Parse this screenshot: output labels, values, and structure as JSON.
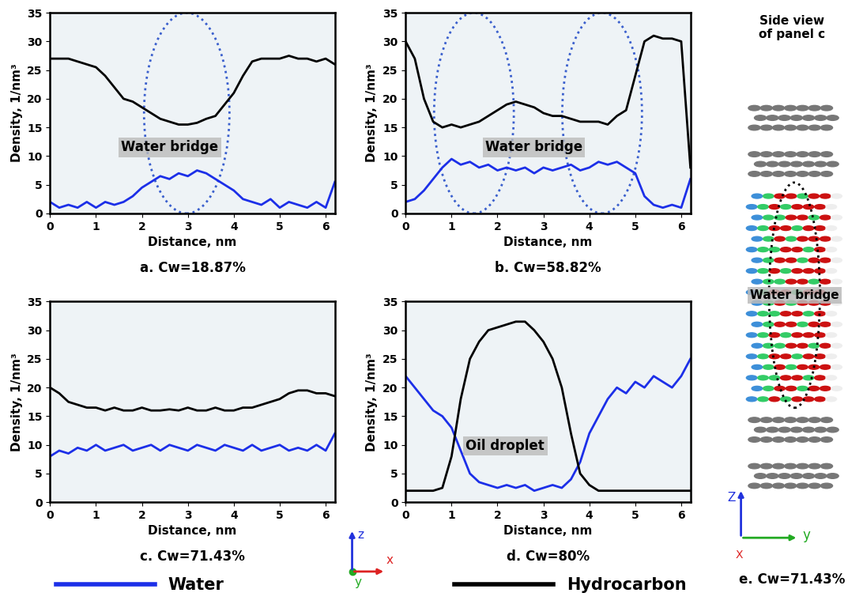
{
  "chart_data": [
    {
      "type": "line",
      "caption": "a. Cw=18.87%",
      "annotation": "Water bridge",
      "x_label": "Distance, nm",
      "y_label": "Density, 1/nm³",
      "xlim": [
        0,
        6.2
      ],
      "xticks": [
        0,
        1,
        2,
        3,
        4,
        5,
        6
      ],
      "ylim": [
        0,
        35
      ],
      "yticks": [
        0,
        5,
        10,
        15,
        20,
        25,
        30,
        35
      ],
      "x": [
        0,
        0.2,
        0.4,
        0.6,
        0.8,
        1.0,
        1.2,
        1.4,
        1.6,
        1.8,
        2.0,
        2.2,
        2.4,
        2.6,
        2.8,
        3.0,
        3.2,
        3.4,
        3.6,
        3.8,
        4.0,
        4.2,
        4.4,
        4.6,
        4.8,
        5.0,
        5.2,
        5.4,
        5.6,
        5.8,
        6.0,
        6.2
      ],
      "series": [
        {
          "name": "Water",
          "color": "#1c2fe8",
          "values": [
            2,
            1,
            1.5,
            1,
            2,
            1,
            2,
            1.5,
            2,
            3,
            4.5,
            5.5,
            6.5,
            6,
            7,
            6.5,
            7.5,
            7,
            6,
            5,
            4,
            2.5,
            2,
            1.5,
            2.5,
            1,
            2,
            1.5,
            1,
            2,
            1,
            5.5
          ]
        },
        {
          "name": "Hydrocarbon",
          "color": "#000000",
          "values": [
            27,
            27,
            27,
            26.5,
            26,
            25.5,
            24,
            22,
            20,
            19.5,
            18.5,
            17.5,
            16.5,
            16,
            15.5,
            15.5,
            15.8,
            16.5,
            17,
            19,
            21,
            24,
            26.5,
            27,
            27,
            27,
            27.5,
            27,
            27,
            26.5,
            27,
            26
          ]
        }
      ]
    },
    {
      "type": "line",
      "caption": "b. Cw=58.82%",
      "annotation": "Water bridge",
      "x_label": "Distance, nm",
      "y_label": "Density, 1/nm³",
      "xlim": [
        0,
        6.2
      ],
      "xticks": [
        0,
        1,
        2,
        3,
        4,
        5,
        6
      ],
      "ylim": [
        0,
        35
      ],
      "yticks": [
        0,
        5,
        10,
        15,
        20,
        25,
        30,
        35
      ],
      "x": [
        0,
        0.2,
        0.4,
        0.6,
        0.8,
        1.0,
        1.2,
        1.4,
        1.6,
        1.8,
        2.0,
        2.2,
        2.4,
        2.6,
        2.8,
        3.0,
        3.2,
        3.4,
        3.6,
        3.8,
        4.0,
        4.2,
        4.4,
        4.6,
        4.8,
        5.0,
        5.2,
        5.4,
        5.6,
        5.8,
        6.0,
        6.2
      ],
      "series": [
        {
          "name": "Water",
          "color": "#1c2fe8",
          "values": [
            2,
            2.5,
            4,
            6,
            8,
            9.5,
            8.5,
            9,
            8,
            8.5,
            7.5,
            8,
            7.5,
            8,
            7,
            8,
            7.5,
            8,
            8.5,
            7.5,
            8,
            9,
            8.5,
            9,
            8,
            7,
            3,
            1.5,
            1,
            1.5,
            1,
            6
          ]
        },
        {
          "name": "Hydrocarbon",
          "color": "#000000",
          "values": [
            30,
            27,
            20,
            16,
            15,
            15.5,
            15,
            15.5,
            16,
            17,
            18,
            19,
            19.5,
            19,
            18.5,
            17.5,
            17,
            17,
            16.5,
            16,
            16,
            16,
            15.5,
            17,
            18,
            24,
            30,
            31,
            30.5,
            30.5,
            30,
            8
          ]
        }
      ]
    },
    {
      "type": "line",
      "caption": "c. Cw=71.43%",
      "x_label": "Distance, nm",
      "y_label": "Density, 1/nm³",
      "xlim": [
        0,
        6.2
      ],
      "xticks": [
        0,
        1,
        2,
        3,
        4,
        5,
        6
      ],
      "ylim": [
        0,
        35
      ],
      "yticks": [
        0,
        5,
        10,
        15,
        20,
        25,
        30,
        35
      ],
      "x": [
        0,
        0.2,
        0.4,
        0.6,
        0.8,
        1.0,
        1.2,
        1.4,
        1.6,
        1.8,
        2.0,
        2.2,
        2.4,
        2.6,
        2.8,
        3.0,
        3.2,
        3.4,
        3.6,
        3.8,
        4.0,
        4.2,
        4.4,
        4.6,
        4.8,
        5.0,
        5.2,
        5.4,
        5.6,
        5.8,
        6.0,
        6.2
      ],
      "series": [
        {
          "name": "Water",
          "color": "#1c2fe8",
          "values": [
            8,
            9,
            8.5,
            9.5,
            9,
            10,
            9,
            9.5,
            10,
            9,
            9.5,
            10,
            9,
            10,
            9.5,
            9,
            10,
            9.5,
            9,
            10,
            9.5,
            9,
            10,
            9,
            9.5,
            10,
            9,
            9.5,
            9,
            10,
            9,
            12
          ]
        },
        {
          "name": "Hydrocarbon",
          "color": "#000000",
          "values": [
            20,
            19,
            17.5,
            17,
            16.5,
            16.5,
            16,
            16.5,
            16,
            16,
            16.5,
            16,
            16,
            16.2,
            16,
            16.5,
            16,
            16,
            16.5,
            16,
            16,
            16.5,
            16.5,
            17,
            17.5,
            18,
            19,
            19.5,
            19.5,
            19,
            19,
            18.5
          ]
        }
      ]
    },
    {
      "type": "line",
      "caption": "d. Cw=80%",
      "annotation": "Oil droplet",
      "x_label": "Distance, nm",
      "y_label": "Density, 1/nm³",
      "xlim": [
        0,
        6.2
      ],
      "xticks": [
        0,
        1,
        2,
        3,
        4,
        5,
        6
      ],
      "ylim": [
        0,
        35
      ],
      "yticks": [
        0,
        5,
        10,
        15,
        20,
        25,
        30,
        35
      ],
      "x": [
        0,
        0.2,
        0.4,
        0.6,
        0.8,
        1.0,
        1.2,
        1.4,
        1.6,
        1.8,
        2.0,
        2.2,
        2.4,
        2.6,
        2.8,
        3.0,
        3.2,
        3.4,
        3.6,
        3.8,
        4.0,
        4.2,
        4.4,
        4.6,
        4.8,
        5.0,
        5.2,
        5.4,
        5.6,
        5.8,
        6.0,
        6.2
      ],
      "series": [
        {
          "name": "Water",
          "color": "#1c2fe8",
          "values": [
            22,
            20,
            18,
            16,
            15,
            13,
            9,
            5,
            3.5,
            3,
            2.5,
            3,
            2.5,
            3,
            2,
            2.5,
            3,
            2.5,
            4,
            7,
            12,
            15,
            18,
            20,
            19,
            21,
            20,
            22,
            21,
            20,
            22,
            25
          ]
        },
        {
          "name": "Hydrocarbon",
          "color": "#000000",
          "values": [
            2,
            2,
            2,
            2,
            2.5,
            8,
            18,
            25,
            28,
            30,
            30.5,
            31,
            31.5,
            31.5,
            30,
            28,
            25,
            20,
            12,
            5,
            3,
            2,
            2,
            2,
            2,
            2,
            2,
            2,
            2,
            2,
            2,
            2
          ]
        }
      ]
    }
  ],
  "legend": "lower center",
  "axes_triad": [
    "z",
    "x",
    "y"
  ],
  "side_view": {
    "title": "Side view\nof panel c",
    "annotation": "Water bridge",
    "caption": "e. Cw=71.43%",
    "axes_triad": [
      "Z",
      "X",
      "y"
    ]
  }
}
